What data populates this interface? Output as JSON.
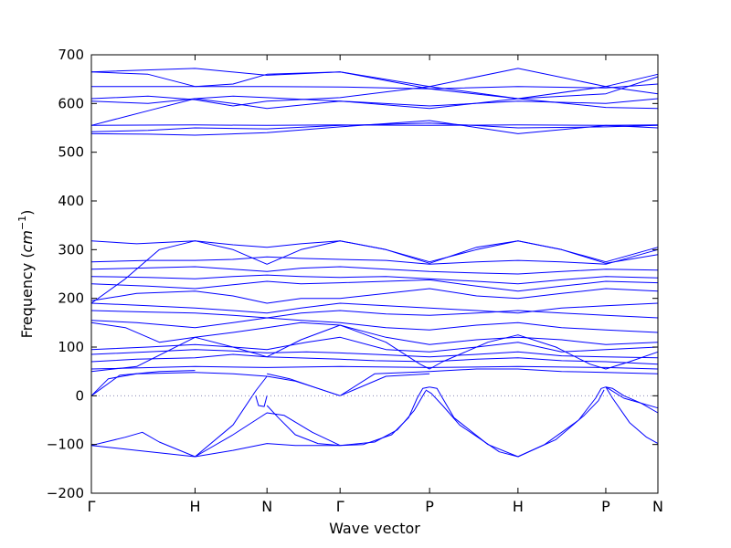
{
  "chart_data": {
    "type": "line",
    "title": "",
    "xlabel": "Wave vector",
    "ylabel_prefix": "Frequency (",
    "ylabel_unit": "cm",
    "ylabel_exp": "−1",
    "ylabel_suffix": ")",
    "ylim": [
      -200,
      700
    ],
    "yticks": [
      -200,
      -100,
      0,
      100,
      200,
      300,
      400,
      500,
      600,
      700
    ],
    "grid": false,
    "legend": "none",
    "line_color": "#0000ff",
    "zero_line_color": "#7777aa",
    "xlim": [
      0,
      1
    ],
    "xticks": [
      {
        "label": "Γ",
        "pos": 0.0
      },
      {
        "label": "H",
        "pos": 0.183
      },
      {
        "label": "N",
        "pos": 0.31
      },
      {
        "label": "Γ",
        "pos": 0.439
      },
      {
        "label": "P",
        "pos": 0.597
      },
      {
        "label": "H",
        "pos": 0.753
      },
      {
        "label": "P",
        "pos": 0.908
      },
      {
        "label": "N",
        "pos": 1.0
      }
    ],
    "series": [
      {
        "x": [
          0,
          0.06,
          0.09,
          0.12,
          0.183
        ],
        "y": [
          -102,
          -85,
          -75,
          -95,
          -125
        ]
      },
      {
        "x": [
          0,
          0.08,
          0.183,
          0.25,
          0.31,
          0.36,
          0.439
        ],
        "y": [
          -102,
          -112,
          -125,
          -112,
          -98,
          -102,
          -102
        ]
      },
      {
        "x": [
          0.183,
          0.25,
          0.31,
          0.34,
          0.39,
          0.439
        ],
        "y": [
          -125,
          -80,
          -35,
          -40,
          -75,
          -102
        ]
      },
      {
        "x": [
          0.183,
          0.25,
          0.29,
          0.31
        ],
        "y": [
          -125,
          -60,
          10,
          40
        ]
      },
      {
        "x": [
          0.31,
          0.33,
          0.36,
          0.4,
          0.439
        ],
        "y": [
          -20,
          -45,
          -80,
          -98,
          -102
        ]
      },
      {
        "x": [
          0.29,
          0.295,
          0.305,
          0.31
        ],
        "y": [
          0,
          -20,
          -22,
          0
        ]
      },
      {
        "x": [
          0.439,
          0.48,
          0.53,
          0.56,
          0.575,
          0.585,
          0.597
        ],
        "y": [
          -102,
          -100,
          -80,
          -45,
          -5,
          15,
          18
        ]
      },
      {
        "x": [
          0.439,
          0.5,
          0.54,
          0.57,
          0.59
        ],
        "y": [
          -102,
          -95,
          -70,
          -30,
          10
        ]
      },
      {
        "x": [
          0.597,
          0.61,
          0.62,
          0.64,
          0.7,
          0.753
        ],
        "y": [
          18,
          15,
          -5,
          -45,
          -100,
          -125
        ]
      },
      {
        "x": [
          0.59,
          0.6,
          0.62,
          0.65,
          0.72,
          0.753
        ],
        "y": [
          12,
          5,
          -20,
          -60,
          -115,
          -125
        ]
      },
      {
        "x": [
          0.753,
          0.8,
          0.86,
          0.89,
          0.9,
          0.908
        ],
        "y": [
          -125,
          -100,
          -50,
          -5,
          15,
          18
        ]
      },
      {
        "x": [
          0.753,
          0.82,
          0.87,
          0.895,
          0.905
        ],
        "y": [
          -125,
          -90,
          -40,
          -10,
          12
        ]
      },
      {
        "x": [
          0.908,
          0.92,
          0.94,
          0.97,
          1.0
        ],
        "y": [
          18,
          15,
          0,
          -15,
          -35
        ]
      },
      {
        "x": [
          0.908,
          0.92,
          0.95,
          0.98,
          1.0
        ],
        "y": [
          18,
          -5,
          -55,
          -85,
          -98
        ]
      },
      {
        "x": [
          0.908,
          0.94,
          1.0
        ],
        "y": [
          18,
          -5,
          -25
        ]
      },
      {
        "x": [
          0,
          0.03,
          0.08,
          0.183
        ],
        "y": [
          0,
          35,
          45,
          48
        ]
      },
      {
        "x": [
          0,
          0.05,
          0.12,
          0.183
        ],
        "y": [
          0,
          42,
          50,
          52
        ]
      },
      {
        "x": [
          0.183,
          0.25,
          0.31,
          0.36,
          0.4,
          0.439
        ],
        "y": [
          48,
          45,
          40,
          30,
          15,
          0
        ]
      },
      {
        "x": [
          0.31,
          0.35,
          0.4,
          0.439
        ],
        "y": [
          45,
          35,
          15,
          0
        ]
      },
      {
        "x": [
          0.439,
          0.5,
          0.597
        ],
        "y": [
          0,
          45,
          50
        ]
      },
      {
        "x": [
          0.439,
          0.52,
          0.597
        ],
        "y": [
          0,
          40,
          45
        ]
      },
      {
        "x": [
          0.597,
          0.68,
          0.753,
          0.83,
          0.908,
          1.0
        ],
        "y": [
          50,
          55,
          55,
          50,
          48,
          45
        ]
      },
      {
        "x": [
          0,
          0.183,
          0.31,
          0.439,
          0.597,
          0.753,
          0.908,
          1.0
        ],
        "y": [
          55,
          60,
          58,
          60,
          58,
          60,
          58,
          55
        ]
      },
      {
        "x": [
          0,
          0.08,
          0.183,
          0.25,
          0.31,
          0.439,
          0.5,
          0.597,
          0.68,
          0.753,
          0.83,
          0.908,
          1.0
        ],
        "y": [
          70,
          75,
          78,
          85,
          80,
          75,
          72,
          70,
          75,
          78,
          72,
          70,
          65
        ]
      },
      {
        "x": [
          0,
          0.1,
          0.183,
          0.25,
          0.31,
          0.38,
          0.439,
          0.5,
          0.597,
          0.68,
          0.753,
          0.83,
          0.908,
          1.0
        ],
        "y": [
          85,
          90,
          95,
          92,
          88,
          90,
          88,
          85,
          80,
          85,
          90,
          82,
          80,
          78
        ]
      },
      {
        "x": [
          0,
          0.1,
          0.183,
          0.25,
          0.31,
          0.38,
          0.439,
          0.52,
          0.597,
          0.68,
          0.753,
          0.83,
          0.908,
          1.0
        ],
        "y": [
          95,
          100,
          105,
          100,
          95,
          110,
          120,
          95,
          90,
          100,
          110,
          90,
          95,
          100
        ]
      },
      {
        "x": [
          0,
          0.08,
          0.183,
          0.25,
          0.31,
          0.37,
          0.439,
          0.52,
          0.58,
          0.597,
          0.62,
          0.7,
          0.753,
          0.82,
          0.88,
          0.908,
          0.95,
          1.0
        ],
        "y": [
          50,
          60,
          120,
          100,
          80,
          115,
          145,
          110,
          65,
          55,
          70,
          110,
          125,
          100,
          65,
          55,
          70,
          90
        ]
      },
      {
        "x": [
          0,
          0.06,
          0.12,
          0.183,
          0.25,
          0.31,
          0.37,
          0.439,
          0.52,
          0.597,
          0.68,
          0.753,
          0.83,
          0.908,
          1.0
        ],
        "y": [
          150,
          140,
          110,
          120,
          130,
          140,
          150,
          145,
          120,
          105,
          115,
          120,
          115,
          105,
          110
        ]
      },
      {
        "x": [
          0,
          0.08,
          0.183,
          0.25,
          0.31,
          0.37,
          0.439,
          0.52,
          0.597,
          0.68,
          0.753,
          0.83,
          0.908,
          1.0
        ],
        "y": [
          155,
          150,
          140,
          150,
          160,
          155,
          150,
          140,
          135,
          145,
          150,
          140,
          135,
          130
        ]
      },
      {
        "x": [
          0,
          0.1,
          0.183,
          0.25,
          0.31,
          0.37,
          0.439,
          0.52,
          0.597,
          0.68,
          0.753,
          0.83,
          0.908,
          1.0
        ],
        "y": [
          175,
          172,
          170,
          165,
          160,
          170,
          175,
          168,
          165,
          170,
          175,
          170,
          165,
          160
        ]
      },
      {
        "x": [
          0,
          0.1,
          0.183,
          0.25,
          0.31,
          0.37,
          0.439,
          0.52,
          0.597,
          0.68,
          0.753,
          0.83,
          0.908,
          1.0
        ],
        "y": [
          190,
          185,
          180,
          175,
          170,
          180,
          190,
          185,
          180,
          175,
          170,
          180,
          185,
          190
        ]
      },
      {
        "x": [
          0,
          0.08,
          0.183,
          0.25,
          0.31,
          0.37,
          0.439,
          0.52,
          0.597,
          0.68,
          0.753,
          0.83,
          0.908,
          1.0
        ],
        "y": [
          195,
          210,
          215,
          205,
          190,
          200,
          200,
          210,
          220,
          205,
          200,
          210,
          220,
          215
        ]
      },
      {
        "x": [
          0,
          0.1,
          0.183,
          0.25,
          0.31,
          0.37,
          0.439,
          0.52,
          0.597,
          0.68,
          0.753,
          0.83,
          0.908,
          1.0
        ],
        "y": [
          230,
          225,
          220,
          228,
          235,
          230,
          232,
          235,
          238,
          225,
          215,
          225,
          235,
          232
        ]
      },
      {
        "x": [
          0,
          0.1,
          0.183,
          0.25,
          0.31,
          0.37,
          0.439,
          0.52,
          0.597,
          0.68,
          0.753,
          0.83,
          0.908,
          1.0
        ],
        "y": [
          245,
          243,
          240,
          245,
          248,
          245,
          243,
          245,
          240,
          235,
          230,
          238,
          245,
          242
        ]
      },
      {
        "x": [
          0,
          0.08,
          0.183,
          0.25,
          0.31,
          0.37,
          0.439,
          0.52,
          0.597,
          0.68,
          0.753,
          0.83,
          0.908,
          1.0
        ],
        "y": [
          260,
          262,
          265,
          260,
          255,
          262,
          265,
          260,
          255,
          252,
          250,
          255,
          260,
          258
        ]
      },
      {
        "x": [
          0,
          0.06,
          0.12,
          0.183,
          0.25,
          0.31,
          0.37,
          0.439,
          0.52,
          0.597,
          0.68,
          0.753,
          0.83,
          0.908,
          1.0
        ],
        "y": [
          190,
          240,
          300,
          318,
          300,
          270,
          300,
          318,
          300,
          272,
          305,
          318,
          300,
          272,
          290
        ]
      },
      {
        "x": [
          0,
          0.08,
          0.183,
          0.25,
          0.31,
          0.37,
          0.439,
          0.52,
          0.597,
          0.68,
          0.753,
          0.83,
          0.908,
          1.0
        ],
        "y": [
          318,
          312,
          318,
          310,
          305,
          312,
          318,
          300,
          275,
          300,
          318,
          300,
          275,
          305
        ]
      },
      {
        "x": [
          0,
          0.1,
          0.183,
          0.25,
          0.31,
          0.37,
          0.439,
          0.52,
          0.597,
          0.68,
          0.753,
          0.83,
          0.908,
          1.0
        ],
        "y": [
          275,
          278,
          278,
          280,
          285,
          282,
          280,
          278,
          270,
          275,
          278,
          275,
          270,
          300
        ]
      },
      {
        "x": [
          0,
          0.1,
          0.183,
          0.31,
          0.439,
          0.597,
          0.753,
          0.908,
          1.0
        ],
        "y": [
          538,
          537,
          535,
          540,
          552,
          565,
          538,
          555,
          550
        ]
      },
      {
        "x": [
          0,
          0.1,
          0.183,
          0.31,
          0.439,
          0.597,
          0.753,
          0.908,
          1.0
        ],
        "y": [
          542,
          545,
          550,
          548,
          555,
          560,
          550,
          552,
          555
        ]
      },
      {
        "x": [
          0,
          0.183,
          0.31,
          0.439,
          0.597,
          0.753,
          0.908,
          1.0
        ],
        "y": [
          555,
          556,
          555,
          556,
          555,
          556,
          555,
          556
        ]
      },
      {
        "x": [
          0,
          0.1,
          0.183,
          0.25,
          0.31,
          0.439,
          0.597,
          0.753,
          0.908,
          1.0
        ],
        "y": [
          555,
          585,
          610,
          600,
          590,
          605,
          590,
          610,
          592,
          590
        ]
      },
      {
        "x": [
          0,
          0.1,
          0.183,
          0.25,
          0.31,
          0.439,
          0.597,
          0.753,
          0.908,
          1.0
        ],
        "y": [
          610,
          615,
          608,
          595,
          605,
          612,
          635,
          610,
          635,
          620
        ]
      },
      {
        "x": [
          0,
          0.1,
          0.183,
          0.25,
          0.31,
          0.439,
          0.597,
          0.753,
          0.908,
          1.0
        ],
        "y": [
          605,
          600,
          610,
          615,
          612,
          605,
          595,
          605,
          600,
          610
        ]
      },
      {
        "x": [
          0,
          0.183,
          0.31,
          0.439,
          0.597,
          0.753,
          0.908,
          1.0
        ],
        "y": [
          635,
          635,
          635,
          634,
          630,
          635,
          632,
          640
        ]
      },
      {
        "x": [
          0,
          0.183,
          0.31,
          0.439,
          0.597,
          0.753,
          0.908,
          1.0
        ],
        "y": [
          665,
          672,
          658,
          665,
          635,
          672,
          635,
          660
        ]
      },
      {
        "x": [
          0,
          0.1,
          0.183,
          0.25,
          0.31,
          0.439,
          0.597,
          0.753,
          0.908,
          1.0
        ],
        "y": [
          665,
          660,
          635,
          640,
          660,
          665,
          630,
          610,
          620,
          655
        ]
      }
    ]
  }
}
